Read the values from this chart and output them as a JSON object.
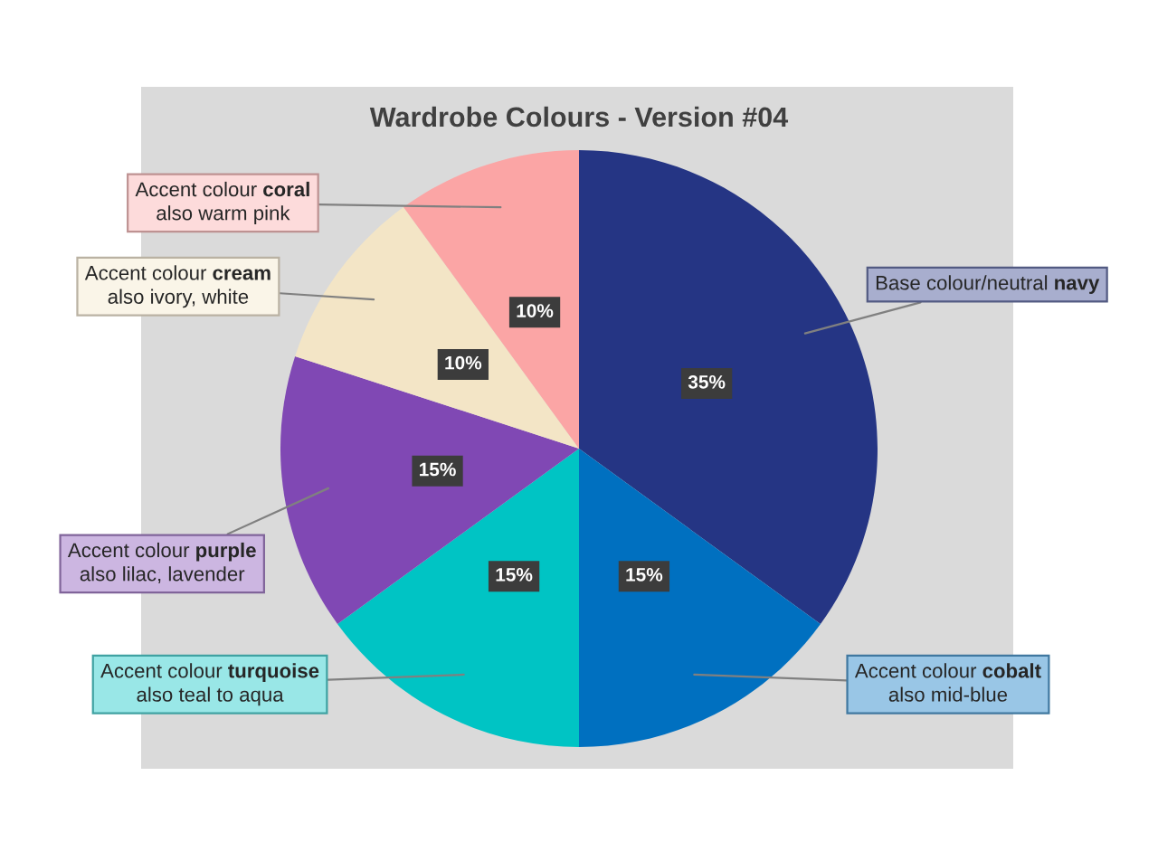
{
  "chart_data": {
    "type": "pie",
    "title": "Wardrobe Colours - Version #04",
    "categories": [
      "Base colour/neutral navy",
      "Accent colour cobalt\nalso mid-blue",
      "Accent colour turquoise\nalso teal to aqua",
      "Accent colour purple\nalso lilac, lavender",
      "Accent colour cream\nalso ivory, white",
      "Accent colour coral\nalso warm pink"
    ],
    "values": [
      35,
      15,
      15,
      15,
      10,
      10
    ],
    "colors": [
      "#253584",
      "#0070c0",
      "#00c4c4",
      "#8048b4",
      "#f3e5c6",
      "#fba5a5"
    ],
    "value_labels": [
      "35%",
      "15%",
      "15%",
      "15%",
      "10%",
      "10%"
    ]
  }
}
